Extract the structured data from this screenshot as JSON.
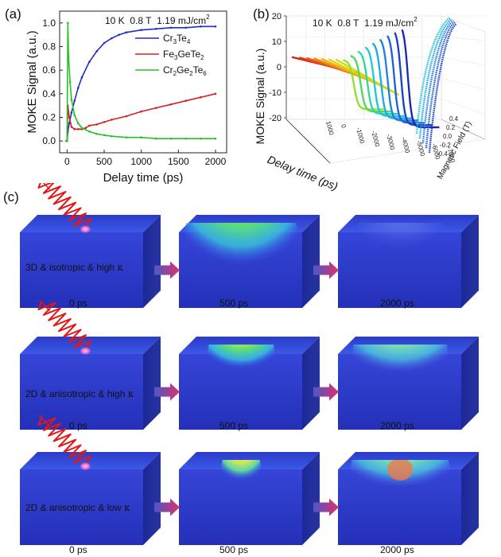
{
  "panels": {
    "a_label": "(a)",
    "b_label": "(b)",
    "c_label": "(c)"
  },
  "chart_a": {
    "conditions": [
      "10 K",
      "0.8 T",
      "1.19 mJ/cm"
    ],
    "conditions_sup": "2"
  },
  "chart_b": {
    "conditions": [
      "10 K",
      "0.8 T",
      "1.19 mJ/cm"
    ],
    "conditions_sup": "2",
    "ylabel": "MOKE Signal (a.u.)",
    "y_ticks": [
      "20",
      "10",
      "0",
      "-10",
      "-20"
    ],
    "xlabel": "Delay time (ps)",
    "zlabel": "Magnetic Field (T)",
    "field_ticks": [
      "0.4",
      "0.2",
      "0.0",
      "-0.2",
      "-0.4"
    ],
    "delay_ticks": [
      "1000",
      "0",
      "-1000",
      "-2000",
      "-3000",
      "-4000",
      "-5000",
      "-6000",
      "-7000"
    ]
  },
  "chart_data": [
    {
      "type": "line",
      "title": "",
      "xlabel": "Delay time (ps)",
      "ylabel": "MOKE Signal (a.u.)",
      "xlim": [
        -100,
        2150
      ],
      "ylim": [
        -0.1,
        1.1
      ],
      "x_ticks": [
        "0",
        "500",
        "1000",
        "1500",
        "2000"
      ],
      "y_ticks": [
        "0.0",
        "0.2",
        "0.4",
        "0.6",
        "0.8",
        "1.0"
      ],
      "legend_position": "top-right",
      "legend_parts": [
        [
          "Cr",
          "3",
          "Te",
          "4",
          ""
        ],
        [
          "Fe",
          "3",
          "GeTe",
          "2",
          ""
        ],
        [
          "Cr",
          "2",
          "Ge",
          "2",
          "Te",
          "6"
        ]
      ],
      "series": [
        {
          "name": "Cr3Te4",
          "color": "#1f2fbf",
          "x": [
            -10,
            0,
            10,
            30,
            60,
            100,
            150,
            200,
            300,
            400,
            500,
            600,
            700,
            800,
            1000,
            1200,
            1400,
            1600,
            1800,
            2000
          ],
          "y": [
            0.0,
            0.0,
            0.08,
            0.15,
            0.24,
            0.34,
            0.45,
            0.54,
            0.67,
            0.76,
            0.83,
            0.87,
            0.9,
            0.92,
            0.94,
            0.95,
            0.96,
            0.96,
            0.97,
            0.97
          ]
        },
        {
          "name": "Fe3GeTe2",
          "color": "#d42020",
          "x": [
            -10,
            0,
            10,
            30,
            60,
            100,
            150,
            200,
            250,
            300,
            400,
            500,
            600,
            800,
            1000,
            1200,
            1400,
            1600,
            1800,
            2000
          ],
          "y": [
            0.0,
            0.0,
            0.3,
            0.2,
            0.12,
            0.1,
            0.1,
            0.1,
            0.11,
            0.13,
            0.14,
            0.16,
            0.18,
            0.21,
            0.25,
            0.28,
            0.31,
            0.34,
            0.37,
            0.4
          ]
        },
        {
          "name": "Cr2Ge2Te6",
          "color": "#27c227",
          "x": [
            -10,
            0,
            10,
            20,
            40,
            60,
            100,
            150,
            200,
            300,
            400,
            500,
            600,
            800,
            1000,
            1200,
            1400,
            1600,
            1800,
            2000
          ],
          "y": [
            0.0,
            0.0,
            1.0,
            0.72,
            0.5,
            0.35,
            0.22,
            0.15,
            0.11,
            0.08,
            0.06,
            0.05,
            0.04,
            0.03,
            0.03,
            0.02,
            0.02,
            0.02,
            0.02,
            0.02
          ]
        }
      ]
    }
  ],
  "schematic": {
    "rows": [
      {
        "label_text": "3D & isotropic & high ",
        "kappa": "κ",
        "times": [
          "0 ps",
          "500 ps",
          "2000 ps"
        ]
      },
      {
        "label_text": "2D & anisotropic & high ",
        "kappa": "κ",
        "times": [
          "0 ps",
          "500 ps",
          "2000 ps"
        ]
      },
      {
        "label_text": "2D & anisotropic & low ",
        "kappa": "κ",
        "times": [
          "0 ps",
          "500 ps",
          "2000 ps"
        ]
      }
    ]
  },
  "colors": {
    "block_front": "#2d3dc8",
    "block_top": "#3b55e6",
    "block_side": "#1e2a9a",
    "laser": "#e01818",
    "arrow_start": "#4b57c8",
    "arrow_end": "#e0306a"
  }
}
